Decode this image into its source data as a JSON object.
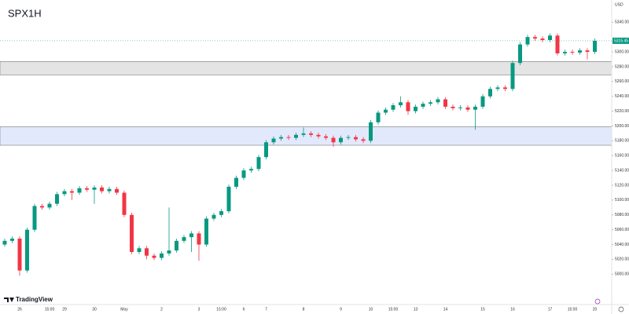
{
  "chart_data": {
    "type": "candlestick",
    "title": "SPX1H",
    "currency": "USD",
    "logo": "TradingView",
    "up_color": "#089981",
    "down_color": "#f23645",
    "ylim": [
      4959,
      5370
    ],
    "yticks": [
      {
        "value": 5000,
        "label": "5000.00"
      },
      {
        "value": 5020,
        "label": "5020.00"
      },
      {
        "value": 5040,
        "label": "5040.00"
      },
      {
        "value": 5060,
        "label": "5060.00"
      },
      {
        "value": 5080,
        "label": "5080.00"
      },
      {
        "value": 5100,
        "label": "5100.00"
      },
      {
        "value": 5120,
        "label": "5120.00"
      },
      {
        "value": 5140,
        "label": "5140.00"
      },
      {
        "value": 5160,
        "label": "5160.00"
      },
      {
        "value": 5180,
        "label": "5180.00"
      },
      {
        "value": 5200,
        "label": "5200.00"
      },
      {
        "value": 5220,
        "label": "5220.00"
      },
      {
        "value": 5240,
        "label": "5240.00"
      },
      {
        "value": 5260,
        "label": "5260.00"
      },
      {
        "value": 5280,
        "label": "5280.00"
      },
      {
        "value": 5300,
        "label": "5300.00"
      },
      {
        "value": 5340,
        "label": "5340.00"
      }
    ],
    "last_price": {
      "value": 5315,
      "label": "5315.45"
    },
    "zones": [
      {
        "top": 5287,
        "bottom": 5269,
        "color": "#e4e4e4"
      },
      {
        "top": 5199,
        "bottom": 5174,
        "color": "#e3e9fc"
      }
    ],
    "categories": [
      null,
      null,
      "26",
      null,
      null,
      null,
      "15:00",
      null,
      "29",
      null,
      null,
      null,
      "30",
      null,
      null,
      null,
      "May",
      null,
      null,
      null,
      null,
      "2",
      null,
      null,
      null,
      null,
      "3",
      null,
      null,
      "15:00",
      null,
      null,
      "6",
      null,
      null,
      "7",
      null,
      null,
      null,
      null,
      "8",
      null,
      null,
      null,
      null,
      "9",
      null,
      null,
      null,
      "10",
      null,
      null,
      "15:00",
      null,
      null,
      "13",
      null,
      null,
      null,
      "14",
      null,
      null,
      null,
      null,
      "15",
      null,
      null,
      null,
      "16",
      null,
      null,
      null,
      null,
      "17",
      null,
      null,
      "15:00",
      null,
      null,
      "20"
    ],
    "open": [
      5040,
      5045,
      5048,
      5005,
      5060,
      5092,
      5090,
      5095,
      5108,
      5112,
      5110,
      5116,
      5114,
      5117,
      5112,
      5115,
      5110,
      5080,
      5030,
      5035,
      5025,
      5022,
      5028,
      5032,
      5045,
      5050,
      5055,
      5040,
      5075,
      5080,
      5085,
      5118,
      5130,
      5140,
      5142,
      5158,
      5178,
      5183,
      5185,
      5184,
      5188,
      5190,
      5188,
      5186,
      5184,
      5178,
      5184,
      5185,
      5182,
      5180,
      5205,
      5218,
      5222,
      5228,
      5232,
      5220,
      5226,
      5230,
      5232,
      5236,
      5226,
      5224,
      5225,
      5222,
      5226,
      5240,
      5250,
      5252,
      5250,
      5285,
      5310,
      5320,
      5318,
      5316,
      5322,
      5298,
      5300,
      5299,
      5302,
      5300
    ],
    "high": [
      5048,
      5051,
      5051,
      5063,
      5095,
      5095,
      5098,
      5111,
      5115,
      5115,
      5119,
      5119,
      5120,
      5120,
      5118,
      5118,
      5113,
      5083,
      5038,
      5038,
      5028,
      5031,
      5090,
      5048,
      5053,
      5058,
      5058,
      5078,
      5083,
      5088,
      5121,
      5133,
      5143,
      5145,
      5161,
      5181,
      5186,
      5188,
      5188,
      5191,
      5198,
      5193,
      5191,
      5189,
      5187,
      5187,
      5188,
      5188,
      5185,
      5208,
      5221,
      5225,
      5231,
      5240,
      5235,
      5229,
      5233,
      5235,
      5239,
      5239,
      5229,
      5228,
      5228,
      5229,
      5243,
      5253,
      5255,
      5255,
      5288,
      5313,
      5323,
      5323,
      5321,
      5325,
      5325,
      5303,
      5303,
      5305,
      5305,
      5318
    ],
    "low": [
      5037,
      5042,
      4998,
      5002,
      5057,
      5087,
      5087,
      5092,
      5105,
      5100,
      5107,
      5111,
      5095,
      5109,
      5109,
      5107,
      5077,
      5027,
      5027,
      5020,
      5019,
      5019,
      5025,
      5029,
      5042,
      5030,
      5018,
      5037,
      5072,
      5077,
      5082,
      5115,
      5127,
      5137,
      5139,
      5155,
      5175,
      5180,
      5181,
      5181,
      5185,
      5185,
      5183,
      5181,
      5172,
      5175,
      5181,
      5179,
      5177,
      5177,
      5202,
      5215,
      5219,
      5225,
      5215,
      5217,
      5223,
      5227,
      5229,
      5223,
      5221,
      5221,
      5219,
      5195,
      5223,
      5237,
      5247,
      5247,
      5247,
      5282,
      5307,
      5315,
      5313,
      5313,
      5295,
      5295,
      5296,
      5296,
      5290,
      5297
    ],
    "close": [
      5045,
      5048,
      5005,
      5060,
      5092,
      5090,
      5095,
      5108,
      5112,
      5110,
      5116,
      5114,
      5117,
      5112,
      5115,
      5110,
      5080,
      5030,
      5035,
      5025,
      5022,
      5028,
      5032,
      5045,
      5050,
      5055,
      5040,
      5075,
      5080,
      5085,
      5118,
      5130,
      5140,
      5142,
      5158,
      5178,
      5183,
      5185,
      5184,
      5188,
      5190,
      5188,
      5186,
      5184,
      5178,
      5184,
      5185,
      5182,
      5180,
      5205,
      5218,
      5222,
      5228,
      5232,
      5220,
      5226,
      5230,
      5232,
      5236,
      5226,
      5224,
      5225,
      5222,
      5226,
      5240,
      5250,
      5252,
      5250,
      5285,
      5310,
      5320,
      5318,
      5316,
      5322,
      5298,
      5300,
      5299,
      5302,
      5300,
      5315
    ]
  }
}
